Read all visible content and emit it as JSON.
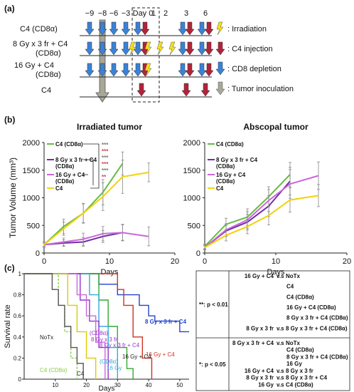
{
  "colors": {
    "green": "#66bb44",
    "purple": "#7030a0",
    "pink": "#cc66dd",
    "yellow": "#f2d20a",
    "blue_arrow": "#3b82d6",
    "red_arrow": "#b0243a",
    "gray_arrow": "#a8a89a",
    "lightning": "#f5e11a",
    "sig_red": "#d04050",
    "sig_gray": "#777777",
    "surv_blue": "#2244cc",
    "surv_red": "#cc3322",
    "surv_green": "#33aa33",
    "surv_cyan": "#33aadd",
    "surv_purple": "#9933cc",
    "surv_yellow": "#ddcc00",
    "surv_lightgreen": "#88cc44",
    "surv_gray": "#888888",
    "surv_dark": "#555555"
  },
  "panel_a": {
    "label": "(a)",
    "days": [
      "−9",
      "−8",
      "−6",
      "−3",
      "Day 0",
      "1",
      "2",
      "3",
      "6"
    ],
    "rows": [
      {
        "label": "C4 (CD8α)",
        "depletion": [
          "−9",
          "−8",
          "−6",
          "−3",
          "Day 0",
          "3",
          "6"
        ],
        "injection": [
          "Day 0",
          "3",
          "6"
        ],
        "irradiation": []
      },
      {
        "label": "8 Gy x 3 fr + C4",
        "label2": "(CD8α)",
        "depletion": [
          "−9",
          "−8",
          "−6",
          "−3",
          "Day 0",
          "3",
          "6"
        ],
        "injection": [
          "Day 0",
          "3",
          "6"
        ],
        "irradiation": [
          "−3",
          "Day 0",
          "1",
          "2"
        ]
      },
      {
        "label": "16 Gy + C4",
        "label2": "(CD8α)",
        "depletion": [
          "−9",
          "−8",
          "−6",
          "−3",
          "Day 0",
          "3",
          "6"
        ],
        "injection": [
          "Day 0",
          "3",
          "6"
        ],
        "irradiation": [
          "Day 0"
        ]
      },
      {
        "label": "C4",
        "depletion": [],
        "injection": [
          "Day 0",
          "3",
          "6"
        ],
        "irradiation": []
      }
    ],
    "legend": [
      "Irradiation",
      "C4 injection",
      "CD8 depletion",
      "Tumor inoculation"
    ]
  },
  "panel_b_label": "(b)",
  "panel_c_label": "(c)",
  "chart_data": [
    {
      "type": "line",
      "title": "Irradiated tumor",
      "xlabel": "Days",
      "ylabel": "Tumor Volume (mm³)",
      "xlim": [
        0,
        20
      ],
      "ylim": [
        0,
        2000
      ],
      "xticks": [
        "0",
        "10",
        "20"
      ],
      "yticks": [
        "0",
        "500",
        "1000",
        "1500",
        "2000"
      ],
      "series": [
        {
          "name": "C4 (CD8α)",
          "color": "#66bb44",
          "x": [
            0,
            3,
            6,
            9,
            12
          ],
          "y": [
            150,
            480,
            720,
            1100,
            1620
          ],
          "err": [
            50,
            130,
            180,
            230,
            210
          ]
        },
        {
          "name": "8 Gy x 3 fr + C4 (CD8α)",
          "color": "#7030a0",
          "x": [
            0,
            3,
            6,
            9,
            12
          ],
          "y": [
            150,
            180,
            200,
            300,
            370
          ],
          "err": [
            30,
            60,
            80,
            110,
            140
          ]
        },
        {
          "name": "16 Gy + C4 (CD8α)",
          "color": "#cc66dd",
          "x": [
            0,
            3,
            6,
            9,
            12,
            16
          ],
          "y": [
            150,
            200,
            250,
            350,
            370,
            300
          ],
          "err": [
            30,
            70,
            110,
            130,
            150,
            170
          ]
        },
        {
          "name": "C4",
          "color": "#f2d20a",
          "x": [
            0,
            3,
            6,
            9,
            12,
            16
          ],
          "y": [
            150,
            440,
            720,
            1020,
            1380,
            1460
          ],
          "err": [
            50,
            120,
            170,
            250,
            300,
            170
          ]
        }
      ],
      "significance": [
        "***",
        "***",
        "***",
        "***",
        "***",
        "**"
      ]
    },
    {
      "type": "line",
      "title": "Abscopal tumor",
      "xlabel": "Days",
      "xlim": [
        0,
        20
      ],
      "ylim": [
        0,
        2000
      ],
      "xticks": [
        "0",
        "10",
        "20"
      ],
      "yticks": [
        "0",
        "500",
        "1000",
        "1500",
        "2000"
      ],
      "series": [
        {
          "name": "C4 (CD8α)",
          "color": "#66bb44",
          "x": [
            0,
            3,
            6,
            9,
            12
          ],
          "y": [
            120,
            520,
            650,
            1020,
            1420
          ],
          "err": [
            40,
            110,
            150,
            180,
            220
          ]
        },
        {
          "name": "8 Gy x 3 fr + C4 (CD8α)",
          "color": "#7030a0",
          "x": [
            0,
            3,
            6,
            9,
            12
          ],
          "y": [
            100,
            400,
            560,
            850,
            1300
          ],
          "err": [
            40,
            100,
            140,
            190,
            250
          ]
        },
        {
          "name": "16 Gy + C4 (CD8α)",
          "color": "#cc66dd",
          "x": [
            0,
            3,
            6,
            9,
            12,
            16
          ],
          "y": [
            100,
            420,
            600,
            950,
            1250,
            1400
          ],
          "err": [
            40,
            110,
            150,
            200,
            260,
            250
          ]
        },
        {
          "name": "C4",
          "color": "#f2d20a",
          "x": [
            0,
            3,
            6,
            9,
            12,
            16
          ],
          "y": [
            100,
            320,
            480,
            680,
            960,
            1040
          ],
          "err": [
            30,
            100,
            130,
            170,
            220,
            200
          ]
        }
      ]
    },
    {
      "type": "line",
      "xlabel": "Days",
      "ylabel": "Survival rate",
      "xlim": [
        0,
        53
      ],
      "ylim": [
        0,
        1
      ],
      "xticks": [
        "10",
        "20",
        "30",
        "40",
        "50"
      ],
      "yticks": [
        "0",
        "0.2",
        "0.4",
        "0.6",
        "0.8",
        "1"
      ],
      "series": [
        {
          "name": "8 Gy x 3 fr + C4",
          "color": "#2244cc",
          "x": [
            0,
            21,
            24,
            27,
            30,
            34,
            37,
            40,
            42,
            47,
            50,
            53
          ],
          "y": [
            1,
            1,
            0.9,
            0.9,
            0.8,
            0.8,
            0.7,
            0.6,
            0.55,
            0.55,
            0.45,
            0.45
          ]
        },
        {
          "name": "16 Gy + C4",
          "color": "#cc3322",
          "x": [
            0,
            27,
            30,
            32,
            35,
            38,
            41
          ],
          "y": [
            1,
            1,
            0.85,
            0.7,
            0.4,
            0.2,
            0
          ]
        },
        {
          "name": "16 Gy",
          "color": "#33aa33",
          "x": [
            0,
            21,
            24,
            27,
            30,
            33,
            35
          ],
          "y": [
            1,
            1,
            0.75,
            0.5,
            0.3,
            0.1,
            0
          ]
        },
        {
          "name": "8 Gy x 3 fr + C4 (CD8α)",
          "color": "#33aadd",
          "x": [
            0,
            18,
            21,
            24,
            27,
            30
          ],
          "y": [
            1,
            1,
            0.8,
            0.5,
            0.3,
            0
          ]
        },
        {
          "name": "8 Gy x 3 fr",
          "color": "#9933cc",
          "x": [
            0,
            15,
            18,
            21,
            24,
            27
          ],
          "y": [
            1,
            1,
            0.75,
            0.55,
            0.3,
            0
          ]
        },
        {
          "name": "16 Gy + C4 (CD8α)",
          "color": "#cc66dd",
          "x": [
            0,
            14,
            17,
            20,
            23,
            26
          ],
          "y": [
            1,
            1,
            0.8,
            0.6,
            0.35,
            0
          ]
        },
        {
          "name": "C4",
          "color": "#ddcc00",
          "x": [
            0,
            11,
            14,
            17,
            20,
            23
          ],
          "y": [
            1,
            1,
            0.7,
            0.45,
            0.2,
            0
          ]
        },
        {
          "name": "C4 (CD8α)",
          "color": "#88cc44",
          "x": [
            0,
            9,
            11,
            13,
            15,
            17
          ],
          "y": [
            1,
            1,
            0.7,
            0.45,
            0.2,
            0
          ]
        },
        {
          "name": "NoTx",
          "color": "#555555",
          "x": [
            0,
            7,
            9,
            11,
            13,
            15,
            17,
            19
          ],
          "y": [
            1,
            1,
            0.85,
            0.7,
            0.5,
            0.3,
            0.15,
            0
          ]
        }
      ],
      "label_texts": [
        "8 Gy x 3 fr + C4",
        "NoTx",
        "16 Gy + C4",
        "(CD8α)",
        "8 Gy x 3 fr",
        "8 Gy x 3 fr + C4",
        "(CD8α)",
        "16 Gy",
        "16 Gy + C4",
        "C4 (CD8α)",
        "C4"
      ]
    },
    {
      "type": "table",
      "groups": [
        {
          "sig": "**: p < 0.01",
          "rows": [
            [
              "16 Gy + C4",
              "v.s",
              "NoTx"
            ],
            [
              "",
              "",
              "C4"
            ],
            [
              "",
              "",
              "C4 (CD8α)"
            ],
            [
              "",
              "",
              "16 Gy + C4 (CD8α)"
            ],
            [
              "",
              "",
              "8 Gy x 3 fr + C4 (CD8α)"
            ],
            [
              "8 Gy x 3 fr",
              "v.s",
              "8 Gy x 3 fr + C4 (CD8α)"
            ]
          ]
        },
        {
          "sig": "*: p < 0.05",
          "rows": [
            [
              "8 Gy x 3 fr + C4",
              "v.s",
              "NoTx"
            ],
            [
              "",
              "",
              "C4 (CD8α)"
            ],
            [
              "",
              "",
              "8 Gy x 3 fr + C4 (CD8α)"
            ],
            [
              "",
              "",
              "16 Gy"
            ],
            [
              "16 Gy + C4",
              "v.s",
              "8 Gy x 3 fr"
            ],
            [
              "8 Gy x 3 fr",
              "v.s",
              "8 Gy x 3 fr + C4"
            ],
            [
              "16 Gy",
              "v.s",
              "C4 (CD8α)"
            ]
          ]
        }
      ]
    }
  ]
}
